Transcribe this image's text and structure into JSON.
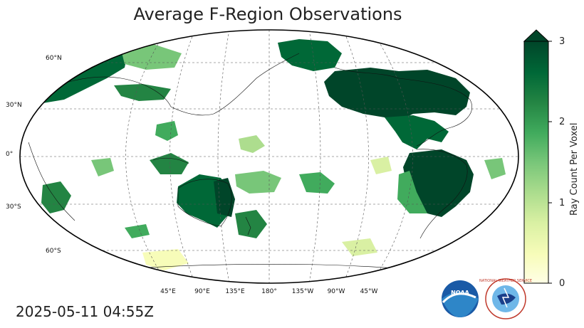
{
  "title": "Average F-Region Observations",
  "timestamp": "2025-05-11 04:55Z",
  "colorbar": {
    "label": "Ray Count Per Voxel",
    "ticks": [
      "0",
      "1",
      "2",
      "3"
    ],
    "min": 0,
    "max": 3,
    "colors": [
      "#ffffe5",
      "#f7fcb9",
      "#d9f0a3",
      "#addd8e",
      "#78c679",
      "#41ab5d",
      "#238443",
      "#006837",
      "#004529"
    ]
  },
  "lat_labels": [
    "60°N",
    "30°N",
    "0°",
    "30°S",
    "60°S"
  ],
  "lon_labels": [
    "45°E",
    "90°E",
    "135°E",
    "180°",
    "135°W",
    "90°W",
    "45°W"
  ],
  "logos": {
    "noaa": "NOAA",
    "nws": "NATIONAL WEATHER SERVICE"
  }
}
